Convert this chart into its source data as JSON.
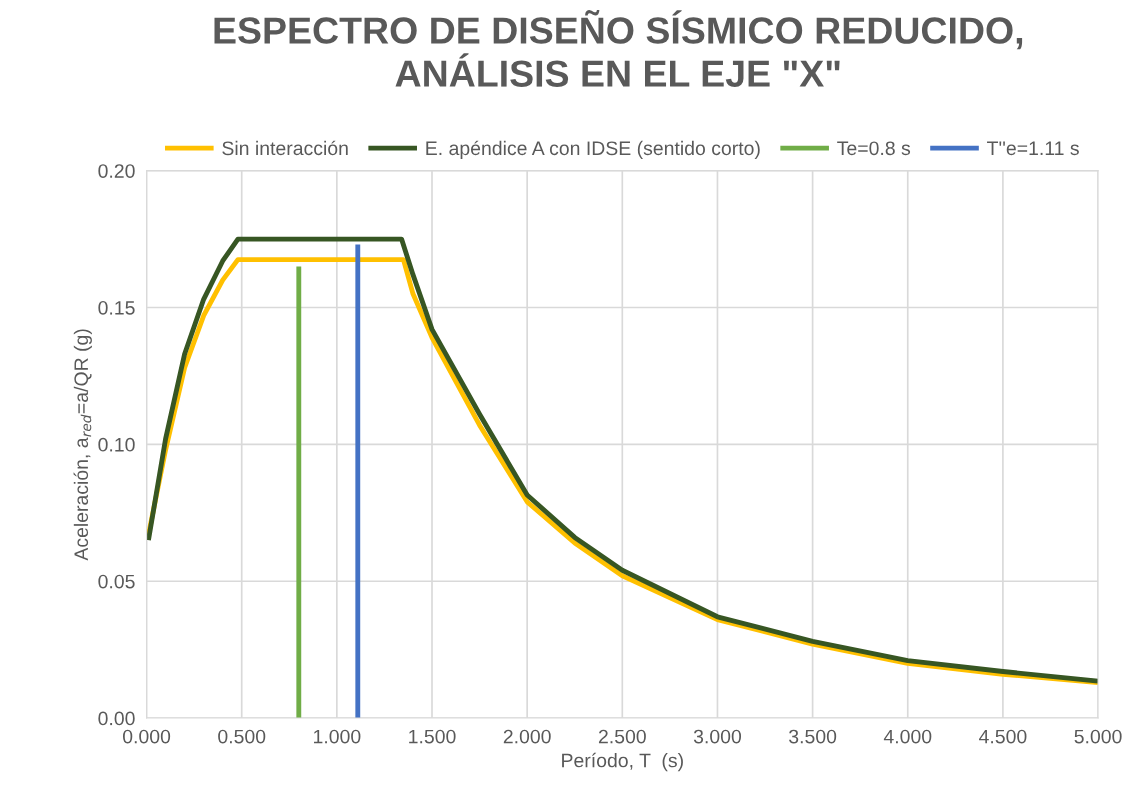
{
  "chart_data": {
    "type": "line",
    "title": "ESPECTRO DE DISEÑO SÍSMICO REDUCIDO,\nANÁLISIS EN EL EJE \"X\"",
    "xlabel": "Período, T  (s)",
    "ylabel": "Aceleración, a$_{red}$=a/QR (g)",
    "xlim": [
      0,
      5
    ],
    "xticks": [
      {
        "value": 0,
        "label": "0.000"
      },
      {
        "value": 0.5,
        "label": "0.500"
      },
      {
        "value": 1,
        "label": "1.000"
      },
      {
        "value": 1.5,
        "label": "1.500"
      },
      {
        "value": 2,
        "label": "2.000"
      },
      {
        "value": 2.5,
        "label": "2.500"
      },
      {
        "value": 3,
        "label": "3.000"
      },
      {
        "value": 3.5,
        "label": "3.500"
      },
      {
        "value": 4,
        "label": "4.000"
      },
      {
        "value": 4.5,
        "label": "4.500"
      },
      {
        "value": 5,
        "label": "5.000"
      }
    ],
    "ylim": [
      0,
      0.2
    ],
    "yticks": [
      {
        "value": 0,
        "label": "0.00"
      },
      {
        "value": 0.05,
        "label": "0.05"
      },
      {
        "value": 0.1,
        "label": "0.10"
      },
      {
        "value": 0.15,
        "label": "0.15"
      },
      {
        "value": 0.2,
        "label": "0.20"
      }
    ],
    "grid": true,
    "legend": "top",
    "marker": "none",
    "line_style": "solid",
    "series": [
      {
        "name": "Sin interacción",
        "color": "#ffc000",
        "x": [
          0.01,
          0.1,
          0.2,
          0.3,
          0.4,
          0.48,
          1.35,
          1.4,
          1.5,
          1.75,
          2.0,
          2.25,
          2.5,
          3.0,
          3.5,
          4.0,
          4.5,
          5.0
        ],
        "values": [
          0.067,
          0.098,
          0.128,
          0.147,
          0.16,
          0.1675,
          0.1675,
          0.155,
          0.139,
          0.107,
          0.079,
          0.064,
          0.052,
          0.036,
          0.027,
          0.02,
          0.016,
          0.013
        ]
      },
      {
        "name": "E. apéndice A con IDSE (sentido corto)",
        "color": "#375623",
        "x": [
          0.01,
          0.1,
          0.2,
          0.3,
          0.4,
          0.48,
          1.34,
          1.4,
          1.5,
          1.75,
          2.0,
          2.25,
          2.5,
          3.0,
          3.5,
          4.0,
          4.5,
          5.0
        ],
        "values": [
          0.065,
          0.102,
          0.133,
          0.153,
          0.167,
          0.175,
          0.175,
          0.162,
          0.142,
          0.111,
          0.0815,
          0.066,
          0.054,
          0.037,
          0.028,
          0.021,
          0.017,
          0.0135
        ]
      },
      {
        "name": "Te=0.8 s",
        "color": "#70ad47",
        "x": [
          0.8,
          0.8
        ],
        "values": [
          0,
          0.165
        ]
      },
      {
        "name": "T''e=1.11 s",
        "color": "#4472c4",
        "x": [
          1.11,
          1.11
        ],
        "values": [
          0,
          0.173
        ]
      }
    ]
  }
}
